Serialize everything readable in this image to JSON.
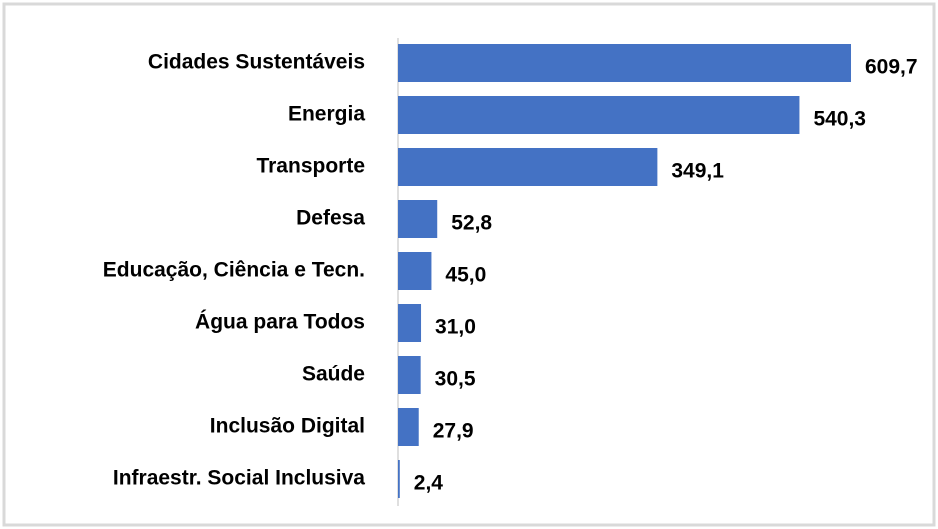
{
  "chart_data": {
    "type": "hbar",
    "categories": [
      "Cidades Sustentáveis",
      "Energia",
      "Transporte",
      "Defesa",
      "Educação, Ciência e Tecn.",
      "Água para Todos",
      "Saúde",
      "Inclusão Digital",
      "Infraestr. Social Inclusiva"
    ],
    "values": [
      609.7,
      540.3,
      349.1,
      52.8,
      45.0,
      31.0,
      30.5,
      27.9,
      2.4
    ],
    "value_labels": [
      "609,7",
      "540,3",
      "349,1",
      "52,8",
      "45,0",
      "31,0",
      "30,5",
      "27,9",
      "2,4"
    ],
    "color": "#4472c4"
  }
}
